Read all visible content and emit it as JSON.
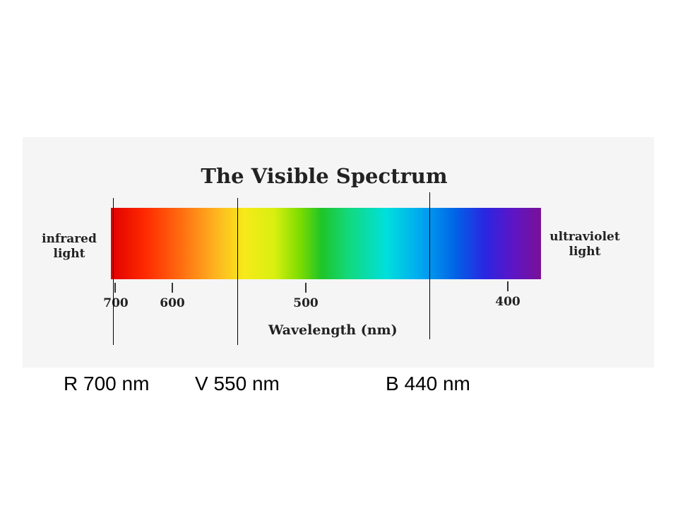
{
  "figure": {
    "title": "The Visible Spectrum",
    "left_label": [
      "infrared",
      "light"
    ],
    "right_label": [
      "ultraviolet",
      "light"
    ],
    "axis_label": "Wavelength (nm)",
    "ticks": [
      {
        "value": 700,
        "label": "700"
      },
      {
        "value": 600,
        "label": "600"
      },
      {
        "value": 500,
        "label": "500"
      },
      {
        "value": 400,
        "label": "400"
      }
    ]
  },
  "markers": [
    {
      "label": "R 700 nm",
      "wavelength_nm": 700
    },
    {
      "label": "V 550 nm",
      "wavelength_nm": 550
    },
    {
      "label": "B 440 nm",
      "wavelength_nm": 440
    }
  ]
}
